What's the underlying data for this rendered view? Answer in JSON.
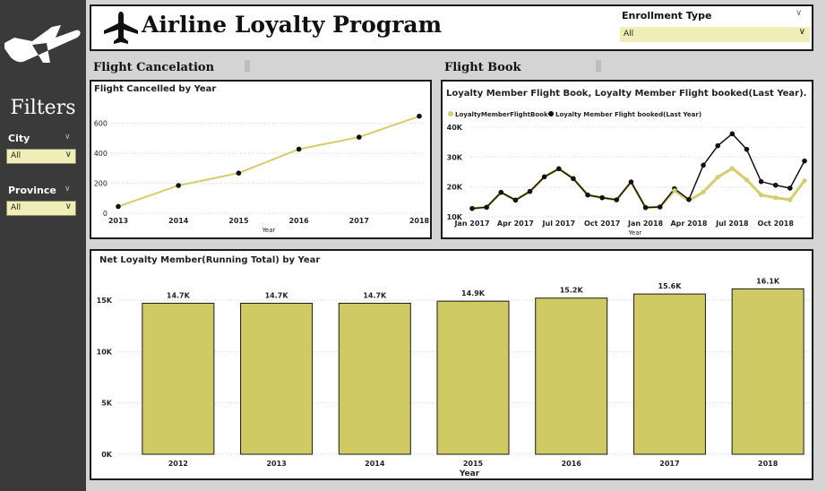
{
  "sidebar": {
    "logo_icon": "airplane-icon",
    "filters_title": "Filters",
    "city": {
      "label": "City",
      "value": "All"
    },
    "province": {
      "label": "Province",
      "value": "All"
    }
  },
  "header": {
    "title": "Airline Loyalty Program",
    "enrollment": {
      "label": "Enrollment Type",
      "value": "All"
    }
  },
  "sections": {
    "cancel": "Flight Cancelation",
    "book": "Flight Book"
  },
  "colors": {
    "accent": "#d4cd6a",
    "bar": "#cfca63",
    "dark": "#111111"
  },
  "chart_data": [
    {
      "id": "cancelled",
      "type": "line",
      "title": "Flight Cancelled by Year",
      "xlabel": "Year",
      "ylabel": "",
      "x": [
        "2013",
        "2014",
        "2015",
        "2016",
        "2017",
        "2018"
      ],
      "values": [
        45,
        185,
        268,
        428,
        508,
        648
      ],
      "ylim": [
        0,
        700
      ],
      "yticks": [
        "0",
        "200",
        "400",
        "600"
      ],
      "ytick_values": [
        0,
        200,
        400,
        600
      ],
      "grid": true
    },
    {
      "id": "booked",
      "type": "line",
      "title": "Loyalty Member Flight Book, Loyalty Member Flight booked(Last Year).",
      "xlabel": "Year",
      "x_tick_labels": [
        "Jan 2017",
        "Apr 2017",
        "Jul 2017",
        "Oct 2017",
        "Jan 2018",
        "Apr 2018",
        "Jul 2018",
        "Oct 2018"
      ],
      "yticks": [
        "10K",
        "20K",
        "30K",
        "40K"
      ],
      "ytick_values": [
        10000,
        20000,
        30000,
        40000
      ],
      "ylim": [
        10000,
        40000
      ],
      "legend_placement": "top-left",
      "series": [
        {
          "name": "LoyaltyMemberFlightBook",
          "values": [
            12800,
            13200,
            18200,
            15600,
            18500,
            23400,
            26100,
            22800,
            17300,
            16400,
            15700,
            21700,
            13100,
            13300,
            18800,
            15400,
            18300,
            23300,
            26200,
            22400,
            17300,
            16400,
            15700,
            22100
          ]
        },
        {
          "name": "Loyalty Member Flight booked(Last Year)",
          "values": [
            12800,
            13200,
            18200,
            15600,
            18500,
            23400,
            26100,
            22800,
            17300,
            16400,
            15700,
            21700,
            13100,
            13300,
            19400,
            15800,
            27300,
            33800,
            37800,
            32600,
            21800,
            20600,
            19600,
            28700
          ]
        }
      ]
    },
    {
      "id": "net",
      "type": "bar",
      "title": "Net Loyalty Member(Running Total) by Year",
      "xlabel": "Year",
      "ylabel": "",
      "categories": [
        "2012",
        "2013",
        "2014",
        "2015",
        "2016",
        "2017",
        "2018"
      ],
      "values": [
        14700,
        14700,
        14700,
        14900,
        15200,
        15600,
        16100
      ],
      "data_labels": [
        "14.7K",
        "14.7K",
        "14.7K",
        "14.9K",
        "15.2K",
        "15.6K",
        "16.1K"
      ],
      "yticks": [
        "0K",
        "5K",
        "10K",
        "15K"
      ],
      "ytick_values": [
        0,
        5000,
        10000,
        15000
      ],
      "ylim": [
        0,
        17000
      ],
      "grid": true
    }
  ]
}
